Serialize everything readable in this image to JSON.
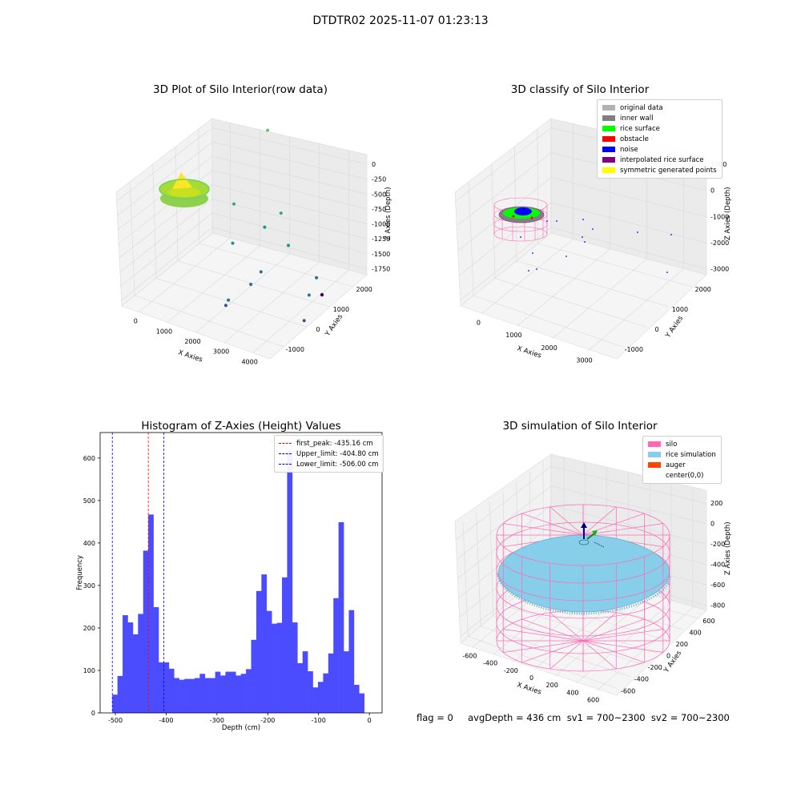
{
  "suptitle": "DTDTR02 2025-11-07 01:23:13",
  "footer": "flag = 0     avgDepth = 436 cm  sv1 = 700~2300  sv2 = 700~2300",
  "chart_data": [
    {
      "type": "scatter",
      "projection": "3d",
      "title": "3D Plot of Silo Interior(row data)",
      "xlabel": "X Axies",
      "ylabel": "Y Axies",
      "zlabel": "Z Axies (Depth)",
      "xticks": [
        "0",
        "1000",
        "2000",
        "3000",
        "4000"
      ],
      "yticks": [
        "-1000",
        "0",
        "1000",
        "2000"
      ],
      "zticks": [
        "0",
        "-250",
        "-500",
        "-750",
        "-1000",
        "-1250",
        "-1500",
        "-1750"
      ],
      "colormap": "viridis",
      "points": [
        {
          "x": 2050,
          "y": 1550,
          "z": -250
        },
        {
          "x": 2600,
          "y": 1400,
          "z": -1000
        },
        {
          "x": 2700,
          "y": 1600,
          "z": -1350
        },
        {
          "x": 2200,
          "y": 1200,
          "z": -1150
        },
        {
          "x": 1400,
          "y": 900,
          "z": -950
        },
        {
          "x": 1500,
          "y": 700,
          "z": -1300
        },
        {
          "x": 2100,
          "y": 700,
          "z": -1650
        },
        {
          "x": 2400,
          "y": 750,
          "z": -1500
        },
        {
          "x": 1700,
          "y": 100,
          "z": -1800
        },
        {
          "x": 1750,
          "y": 150,
          "z": -1750
        },
        {
          "x": 3600,
          "y": 1300,
          "z": -1700
        },
        {
          "x": 3700,
          "y": 1500,
          "z": -1550
        },
        {
          "x": 3650,
          "y": 1000,
          "z": -1900
        }
      ]
    },
    {
      "type": "scatter",
      "projection": "3d",
      "title": "3D classify of Silo Interior",
      "xlabel": "X Axies",
      "ylabel": "Y Axies",
      "zlabel": "Z Axies (Depth)",
      "xticks": [
        "0",
        "1000",
        "2000",
        "3000"
      ],
      "yticks": [
        "-1000",
        "0",
        "1000",
        "2000"
      ],
      "zticks": [
        "1000",
        "0",
        "-1000",
        "-2000",
        "-3000"
      ],
      "legend": [
        {
          "label": "original data",
          "color": "#b3b3b3"
        },
        {
          "label": "inner wall",
          "color": "#808080"
        },
        {
          "label": "rice surface",
          "color": "#00ff00"
        },
        {
          "label": "obstacle",
          "color": "#ff0000"
        },
        {
          "label": "noise",
          "color": "#0000ff"
        },
        {
          "label": "interpolated rice surface",
          "color": "#800080"
        },
        {
          "label": "symmetric generated points",
          "color": "#ffff00"
        }
      ]
    },
    {
      "type": "bar",
      "title": "Histogram of Z-Axies (Height) Values",
      "xlabel": "Depth (cm)",
      "ylabel": "Frequency",
      "xlim": [
        -530,
        25
      ],
      "ylim": [
        0,
        660
      ],
      "xticks": [
        -500,
        -400,
        -300,
        -200,
        -100,
        0
      ],
      "yticks": [
        0,
        100,
        200,
        300,
        400,
        500,
        600
      ],
      "bar_color": "#4c4cff",
      "bin_start": -506,
      "bin_width": 10.12,
      "values": [
        43,
        87,
        230,
        213,
        185,
        233,
        382,
        467,
        249,
        119,
        119,
        104,
        82,
        78,
        80,
        80,
        82,
        92,
        82,
        82,
        97,
        88,
        97,
        97,
        88,
        92,
        103,
        172,
        287,
        326,
        240,
        210,
        212,
        319,
        617,
        213,
        117,
        145,
        98,
        60,
        73,
        93,
        140,
        270,
        449,
        145,
        242,
        66,
        46
      ],
      "vlines": [
        {
          "x": -435.16,
          "color": "#ff0000",
          "label": "first_peak: -435.16 cm"
        },
        {
          "x": -404.8,
          "color": "#0000ff",
          "label": "Upper_limit: -404.80 cm"
        },
        {
          "x": -506.0,
          "color": "#0000ff",
          "label": "Lower_limit: -506.00 cm"
        }
      ]
    },
    {
      "type": "scatter",
      "projection": "3d",
      "title": "3D simulation of Silo Interior",
      "xlabel": "X Axies",
      "ylabel": "Y Axies",
      "zlabel": "Z Axies (Depth)",
      "xticks": [
        "-600",
        "-400",
        "-200",
        "0",
        "200",
        "400",
        "600"
      ],
      "yticks": [
        "-600",
        "-400",
        "-200",
        "0",
        "200",
        "400",
        "600"
      ],
      "zticks": [
        "200",
        "0",
        "-200",
        "-400",
        "-600",
        "-800"
      ],
      "legend": [
        {
          "label": "silo",
          "color": "#ff69b4"
        },
        {
          "label": "rice simulation",
          "color": "#87ceeb"
        },
        {
          "label": "auger",
          "color": "#ff4500"
        },
        {
          "label": "center(0,0)",
          "color": "#ffffff"
        }
      ]
    }
  ]
}
